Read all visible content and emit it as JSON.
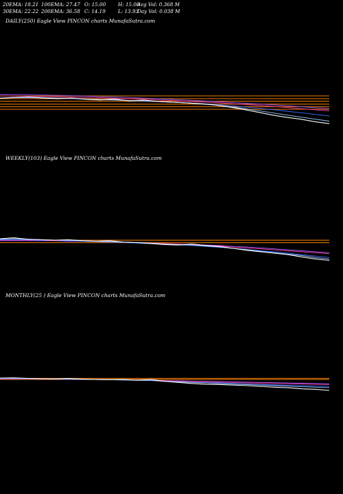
{
  "header": {
    "row1": [
      "20EMA: 18.21",
      "100EMA: 27.47",
      "O: 15.00",
      "H: 15.00",
      "Avg Vol: 0.368  M"
    ],
    "row2": [
      "30EMA: 22.22",
      "200EMA: 36.58",
      "C: 14.19",
      "L: 13.93",
      "Day Vol: 0.038  M"
    ]
  },
  "panels": {
    "daily_label": "DAILY(250) Eagle   View  PINCON  charts MunafaSutra.com",
    "weekly_label": "WEEKLY(103) Eagle   View  PINCON  charts MunafaSutra.com",
    "monthly_label": "MONTHLY(25                              ) Eagle   View  PINCON  charts MunafaSutra.com"
  },
  "colors": {
    "background": "#000000",
    "price": "#ffffff",
    "ema_blue": "#3a6bff",
    "ema_light": "#9ecbff",
    "ema_pink": "#ff3ea0",
    "ema_purple": "#9b59ff",
    "support_orange": "#d06a00"
  },
  "chart_data": [
    {
      "type": "line",
      "name": "daily",
      "series": [
        {
          "color": "#ffffff",
          "values": [
            30,
            30.5,
            30.8,
            30.2,
            29.8,
            30.1,
            29.4,
            29.0,
            29.6,
            28.4,
            28.9,
            28.1,
            27.6,
            27.2,
            26.7,
            25.9,
            24.6,
            23.1,
            21.4,
            19.6,
            18.2,
            17.0,
            15.4,
            14.2
          ]
        },
        {
          "color": "#9ecbff",
          "values": [
            30.2,
            30.6,
            30.9,
            30.5,
            30.2,
            30.0,
            29.6,
            29.2,
            29.0,
            28.7,
            28.4,
            28.0,
            27.6,
            27.1,
            26.5,
            25.8,
            24.9,
            23.7,
            22.4,
            21.0,
            19.6,
            18.3,
            17.0,
            15.8
          ]
        },
        {
          "color": "#3a6bff",
          "values": [
            30.1,
            30.3,
            30.4,
            30.2,
            30.0,
            29.8,
            29.5,
            29.2,
            28.9,
            28.6,
            28.3,
            28.0,
            27.6,
            27.2,
            26.7,
            26.2,
            25.5,
            24.7,
            23.9,
            23.0,
            22.0,
            21.0,
            20.0,
            19.0
          ]
        },
        {
          "color": "#ff3ea0",
          "values": [
            31.5,
            31.4,
            31.3,
            31.2,
            31.0,
            30.8,
            30.6,
            30.3,
            30.0,
            29.7,
            29.4,
            29.0,
            28.6,
            28.2,
            27.8,
            27.3,
            26.8,
            26.2,
            25.6,
            25.0,
            24.3,
            23.6,
            22.9,
            22.2
          ]
        },
        {
          "color": "#9b59ff",
          "values": [
            32.5,
            32.4,
            32.3,
            32.1,
            31.9,
            31.7,
            31.4,
            31.1,
            30.8,
            30.5,
            30.1,
            29.7,
            29.3,
            28.9,
            28.5,
            28.0,
            27.5,
            27.0,
            26.5,
            26.0,
            25.4,
            24.8,
            24.2,
            23.6
          ]
        }
      ],
      "hlines": [
        31.5,
        29.8,
        28.2,
        26.4,
        24.8,
        23.2
      ],
      "ylim": [
        10,
        40
      ]
    },
    {
      "type": "line",
      "name": "weekly",
      "series": [
        {
          "color": "#ffffff",
          "values": [
            60,
            62,
            59,
            58,
            57,
            58,
            56,
            55,
            56,
            53,
            52,
            50,
            48,
            47,
            49,
            46,
            44,
            40,
            36,
            33,
            30,
            27,
            22,
            18,
            15
          ]
        },
        {
          "color": "#9ecbff",
          "values": [
            59,
            60,
            59,
            58,
            57,
            57,
            56,
            55,
            54,
            53,
            52,
            51,
            49,
            48,
            47,
            45,
            43,
            40,
            37,
            34,
            31,
            28,
            25,
            21,
            18
          ]
        },
        {
          "color": "#3a6bff",
          "values": [
            58,
            58,
            58,
            57,
            57,
            56,
            55,
            54,
            53,
            52,
            51,
            50,
            48,
            47,
            46,
            44,
            42,
            40,
            38,
            35,
            33,
            30,
            27,
            24,
            21
          ]
        },
        {
          "color": "#ff3ea0",
          "values": [
            57,
            57,
            57,
            57,
            56,
            56,
            55,
            55,
            54,
            53,
            52,
            51,
            50,
            49,
            48,
            46,
            45,
            43,
            41,
            39,
            37,
            35,
            33,
            31,
            29
          ]
        },
        {
          "color": "#9b59ff",
          "values": [
            56,
            56,
            56,
            56,
            56,
            55,
            55,
            54,
            54,
            53,
            52,
            51,
            50,
            49,
            48,
            47,
            46,
            44,
            43,
            41,
            39,
            37,
            35,
            33,
            31
          ]
        }
      ],
      "hlines": [
        57,
        52
      ],
      "ylim": [
        0,
        100
      ]
    },
    {
      "type": "line",
      "name": "monthly",
      "series": [
        {
          "color": "#ffffff",
          "values": [
            100,
            101,
            99,
            98,
            97,
            99,
            96,
            95,
            94,
            95,
            92,
            95,
            88,
            84,
            80,
            77,
            76,
            74,
            72,
            69,
            66,
            64,
            60,
            58,
            54
          ]
        },
        {
          "color": "#9ecbff",
          "values": [
            100,
            100,
            99,
            98,
            97,
            97,
            96,
            95,
            94,
            93,
            92,
            91,
            88,
            86,
            84,
            82,
            80,
            78,
            76,
            74,
            72,
            70,
            68,
            66,
            64
          ]
        },
        {
          "color": "#3a6bff",
          "values": [
            99,
            99,
            98,
            98,
            97,
            96,
            95,
            95,
            94,
            93,
            92,
            91,
            89,
            87,
            85,
            83,
            82,
            80,
            78,
            76,
            75,
            73,
            72,
            70,
            69
          ]
        },
        {
          "color": "#ff3ea0",
          "values": [
            98,
            98,
            98,
            97,
            97,
            96,
            96,
            95,
            94,
            94,
            93,
            92,
            91,
            89,
            88,
            86,
            85,
            84,
            82,
            81,
            80,
            79,
            78,
            77,
            76
          ]
        },
        {
          "color": "#9b59ff",
          "values": [
            97,
            97,
            97,
            97,
            96,
            96,
            95,
            95,
            94,
            94,
            93,
            92,
            91,
            90,
            89,
            88,
            87,
            86,
            85,
            84,
            83,
            82,
            81,
            80,
            79
          ]
        }
      ],
      "hlines": [
        99,
        95
      ],
      "ylim": [
        0,
        180
      ]
    }
  ]
}
